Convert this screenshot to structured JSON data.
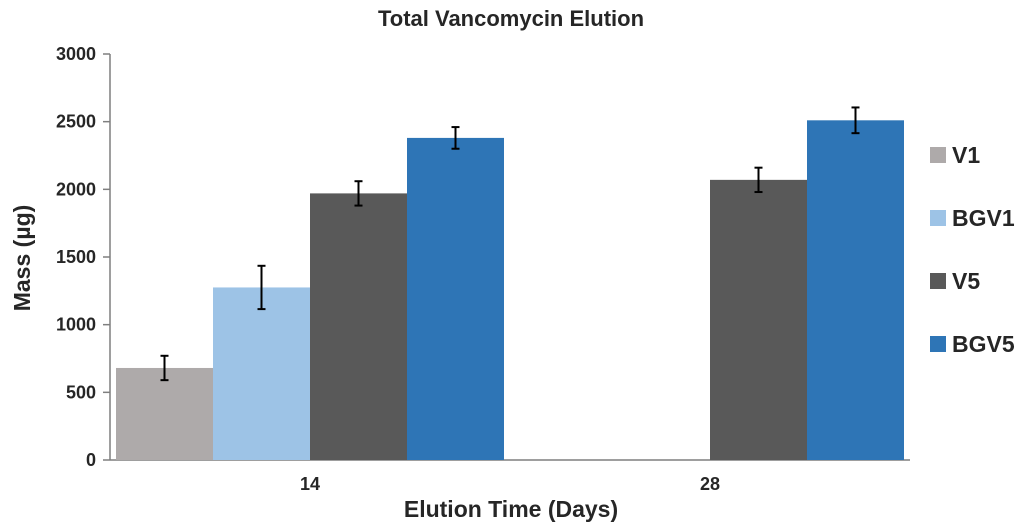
{
  "chart_data": {
    "type": "bar",
    "title": "Total Vancomycin Elution",
    "xlabel": "Elution Time (Days)",
    "ylabel": "Mass (µg)",
    "ylim": [
      0,
      3000
    ],
    "yticks": [
      "0",
      "500",
      "1000",
      "1500",
      "2000",
      "2500",
      "3000"
    ],
    "categories": [
      "14",
      "28"
    ],
    "series": [
      {
        "name": "V1",
        "color": "#aeaaaa",
        "values": [
          680,
          null
        ],
        "errors": [
          90,
          null
        ]
      },
      {
        "name": "BGV1",
        "color": "#9dc3e6",
        "values": [
          1275,
          null
        ],
        "errors": [
          160,
          null
        ]
      },
      {
        "name": "V5",
        "color": "#595959",
        "values": [
          1970,
          2070
        ],
        "errors": [
          90,
          90
        ]
      },
      {
        "name": "BGV5",
        "color": "#2e75b6",
        "values": [
          2380,
          2510
        ],
        "errors": [
          80,
          95
        ]
      }
    ],
    "legend_position": "right",
    "grid": false
  }
}
